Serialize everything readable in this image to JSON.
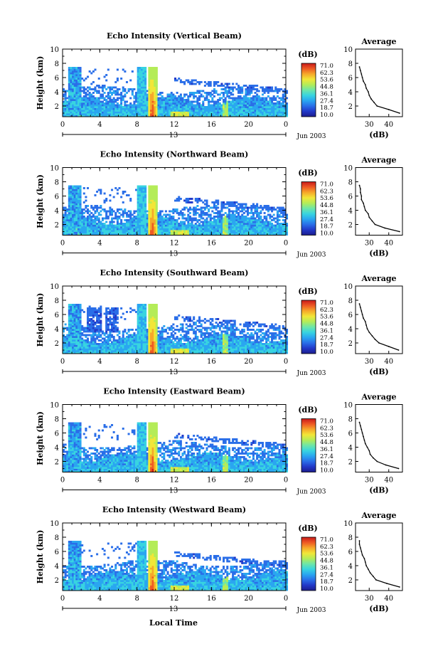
{
  "page": {
    "bottom_xlabel": "Local Time",
    "date_label": "Jun 2003",
    "day_label": "13"
  },
  "colorbar": {
    "unit": "(dB)",
    "ticks": [
      "71.0",
      "62.3",
      "53.6",
      "44.8",
      "36.1",
      "27.4",
      "18.7",
      "10.0"
    ],
    "colors": [
      "#1c1c8c",
      "#2238c8",
      "#2a6ee8",
      "#2aa6f0",
      "#38d4e0",
      "#6ee6a8",
      "#b4ec58",
      "#f2e638",
      "#f6a82a",
      "#ee5a24",
      "#c81a1a"
    ]
  },
  "chart_data": [
    {
      "type": "heatmap",
      "title": "Echo Intensity (Vertical Beam)",
      "ylabel": "Height (km)",
      "xlabel": "",
      "x_ticks": [
        "0",
        "4",
        "8",
        "12",
        "16",
        "20",
        "0"
      ],
      "y_ticks": [
        "2",
        "4",
        "6",
        "8",
        "10"
      ],
      "xlim": [
        0,
        24
      ],
      "ylim": [
        0.5,
        10
      ],
      "value_range_dB": [
        10.0,
        71.0
      ],
      "profile": {
        "title": "Average",
        "xlabel": "(dB)",
        "x_ticks": [
          "30",
          "40"
        ],
        "xlim": [
          23,
          47
        ],
        "ylim": [
          0.5,
          10
        ],
        "heights": [
          1.0,
          1.5,
          2.0,
          2.5,
          3.0,
          3.5,
          4.0,
          4.5,
          5.0,
          5.5,
          6.0,
          6.5,
          7.0,
          7.5
        ],
        "values": [
          45.5,
          40.0,
          34.0,
          32.5,
          31.0,
          30.0,
          29.5,
          28.5,
          28.0,
          27.0,
          26.5,
          26.0,
          25.5,
          25.0
        ]
      }
    },
    {
      "type": "heatmap",
      "title": "Echo Intensity (Northward Beam)",
      "ylabel": "Height (km)",
      "xlabel": "",
      "x_ticks": [
        "0",
        "4",
        "8",
        "12",
        "16",
        "20",
        "0"
      ],
      "y_ticks": [
        "2",
        "4",
        "6",
        "8",
        "10"
      ],
      "xlim": [
        0,
        24
      ],
      "ylim": [
        0.5,
        10
      ],
      "value_range_dB": [
        10.0,
        71.0
      ],
      "profile": {
        "title": "Average",
        "xlabel": "(dB)",
        "x_ticks": [
          "30",
          "40"
        ],
        "xlim": [
          23,
          47
        ],
        "ylim": [
          0.5,
          10
        ],
        "heights": [
          1.0,
          1.5,
          2.0,
          2.5,
          3.0,
          3.5,
          4.0,
          4.5,
          5.0,
          5.5,
          6.0,
          6.5,
          7.0,
          7.5
        ],
        "values": [
          45.5,
          38.0,
          33.0,
          31.5,
          30.0,
          29.5,
          28.0,
          27.5,
          27.0,
          26.0,
          26.0,
          25.5,
          25.5,
          25.0
        ]
      }
    },
    {
      "type": "heatmap",
      "title": "Echo Intensity (Southward Beam)",
      "ylabel": "Height (km)",
      "xlabel": "",
      "x_ticks": [
        "0",
        "4",
        "8",
        "12",
        "16",
        "20",
        "0"
      ],
      "y_ticks": [
        "2",
        "4",
        "6",
        "8",
        "10"
      ],
      "xlim": [
        0,
        24
      ],
      "ylim": [
        0.5,
        10
      ],
      "value_range_dB": [
        10.0,
        71.0
      ],
      "profile": {
        "title": "Average",
        "xlabel": "(dB)",
        "x_ticks": [
          "30",
          "40"
        ],
        "xlim": [
          23,
          47
        ],
        "ylim": [
          0.5,
          10
        ],
        "heights": [
          1.0,
          1.5,
          2.0,
          2.5,
          3.0,
          3.5,
          4.0,
          4.5,
          5.0,
          5.5,
          6.0,
          6.5,
          7.0,
          7.5
        ],
        "values": [
          45.0,
          40.0,
          35.0,
          33.0,
          31.5,
          30.0,
          29.0,
          28.5,
          28.0,
          27.0,
          26.5,
          26.0,
          25.5,
          25.0
        ]
      }
    },
    {
      "type": "heatmap",
      "title": "Echo Intensity (Eastward Beam)",
      "ylabel": "Height (km)",
      "xlabel": "",
      "x_ticks": [
        "0",
        "4",
        "8",
        "12",
        "16",
        "20",
        "0"
      ],
      "y_ticks": [
        "2",
        "4",
        "6",
        "8",
        "10"
      ],
      "xlim": [
        0,
        24
      ],
      "ylim": [
        0.5,
        10
      ],
      "value_range_dB": [
        10.0,
        71.0
      ],
      "profile": {
        "title": "Average",
        "xlabel": "(dB)",
        "x_ticks": [
          "30",
          "40"
        ],
        "xlim": [
          23,
          47
        ],
        "ylim": [
          0.5,
          10
        ],
        "heights": [
          1.0,
          1.5,
          2.0,
          2.5,
          3.0,
          3.5,
          4.0,
          4.5,
          5.0,
          5.5,
          6.0,
          6.5,
          7.0,
          7.5
        ],
        "values": [
          45.0,
          38.5,
          34.0,
          32.0,
          30.5,
          30.0,
          29.0,
          28.0,
          27.5,
          27.0,
          26.5,
          26.0,
          25.5,
          25.0
        ]
      }
    },
    {
      "type": "heatmap",
      "title": "Echo Intensity (Westward Beam)",
      "ylabel": "Height (km)",
      "xlabel": "Local Time",
      "x_ticks": [
        "0",
        "4",
        "8",
        "12",
        "16",
        "20",
        "0"
      ],
      "y_ticks": [
        "2",
        "4",
        "6",
        "8",
        "10"
      ],
      "xlim": [
        0,
        24
      ],
      "ylim": [
        0.5,
        10
      ],
      "value_range_dB": [
        10.0,
        71.0
      ],
      "profile": {
        "title": "Average",
        "xlabel": "(dB)",
        "x_ticks": [
          "30",
          "40"
        ],
        "xlim": [
          23,
          47
        ],
        "ylim": [
          0.5,
          10
        ],
        "heights": [
          1.0,
          1.5,
          2.0,
          2.5,
          3.0,
          3.5,
          4.0,
          4.5,
          5.0,
          5.5,
          6.0,
          6.5,
          7.0,
          7.5
        ],
        "values": [
          45.5,
          39.0,
          33.5,
          32.0,
          30.5,
          29.5,
          28.5,
          28.0,
          27.5,
          26.5,
          26.0,
          25.5,
          25.0,
          25.0
        ]
      }
    }
  ]
}
